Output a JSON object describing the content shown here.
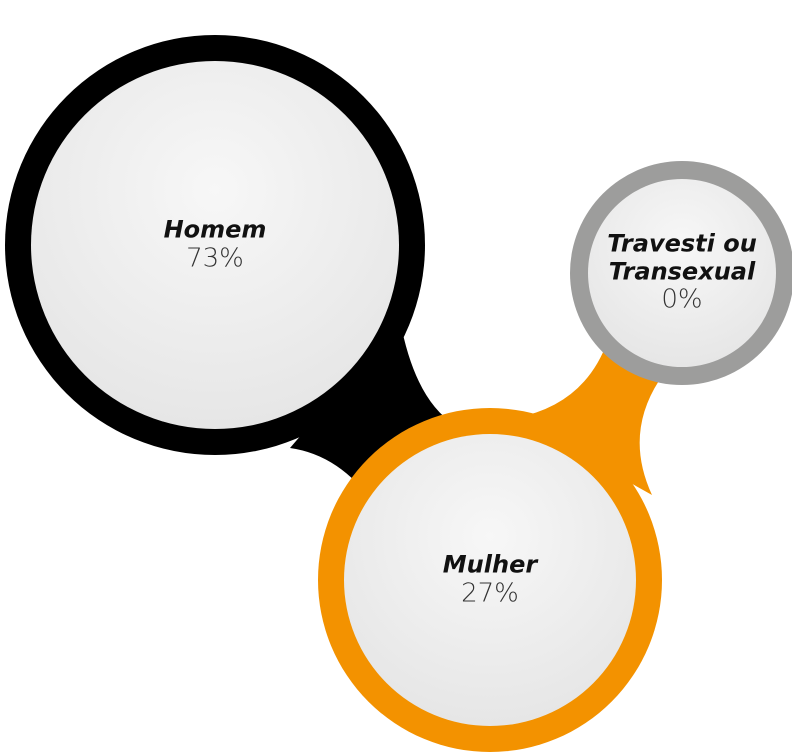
{
  "chart_data": {
    "type": "bubble",
    "categories": [
      "Homem",
      "Mulher",
      "Travesti ou Transexual"
    ],
    "values": [
      73,
      27,
      0
    ],
    "value_labels": [
      "73%",
      "27%",
      "0%"
    ],
    "colors": [
      "#000000",
      "#f39200",
      "#9d9d9c"
    ]
  }
}
